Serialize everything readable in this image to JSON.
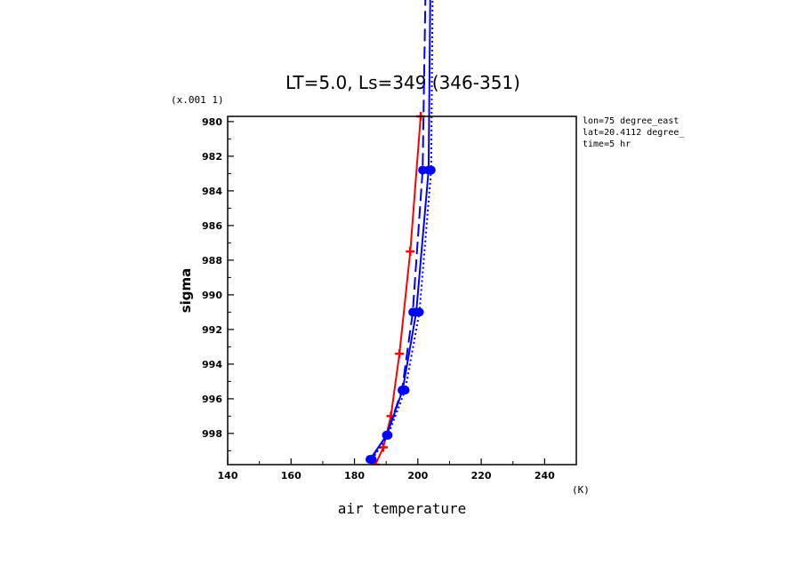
{
  "chart_data": {
    "type": "line",
    "title": "LT=5.0, Ls=349 (346-351)",
    "xlabel": "air temperature",
    "xunit": "(K)",
    "ylabel": "sigma",
    "yunit": "(x.001 1)",
    "xlim": [
      140,
      250
    ],
    "ylim": [
      979.7,
      999.8
    ],
    "y_inverted": true,
    "xticks": [
      140,
      160,
      180,
      200,
      220,
      240
    ],
    "yticks": [
      980,
      982,
      984,
      986,
      988,
      990,
      992,
      994,
      996,
      998
    ],
    "info": [
      "lon=75 degree_east",
      "lat=20.4112 degree_",
      "time=5 hr"
    ],
    "series": [
      {
        "color": "#ff0000",
        "style": "solid",
        "marker": "cross",
        "x": [
          186.6,
          189.1,
          191.5,
          194.2,
          197.6,
          200.9
        ],
        "y": [
          999.8,
          998.8,
          997.0,
          993.4,
          987.5,
          979.7
        ]
      },
      {
        "color": "#0000ff",
        "style": "solid",
        "marker": "dot",
        "x": [
          184.9,
          190.2,
          195.2,
          199.5,
          203.4,
          204.6
        ],
        "y": [
          999.5,
          998.1,
          995.5,
          991.0,
          982.8,
          960.0
        ]
      },
      {
        "color": "#0000ff",
        "style": "dashed",
        "marker": "dot",
        "x": [
          185.2,
          190.1,
          195.0,
          198.4,
          201.5,
          203.5
        ],
        "y": [
          999.5,
          998.1,
          995.5,
          991.0,
          982.8,
          960.0
        ]
      },
      {
        "color": "#0000ff",
        "style": "dotted",
        "marker": "dot",
        "x": [
          185.6,
          190.6,
          196.0,
          200.5,
          204.2,
          205.2
        ],
        "y": [
          999.5,
          998.1,
          995.5,
          991.0,
          982.8,
          960.0
        ]
      }
    ]
  }
}
